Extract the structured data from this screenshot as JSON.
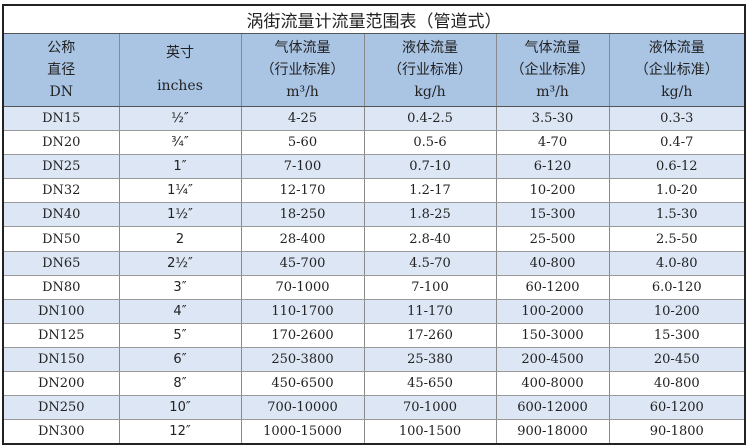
{
  "title": "涡街流量计流量范围表（管道式）",
  "headers": [
    {
      "l1": "公称",
      "l2": "直径",
      "l3": "DN"
    },
    {
      "l1": "英寸",
      "l2": "",
      "l3": "inches"
    },
    {
      "l1": "气体流量",
      "l2": "（行业标准）",
      "l3": "m³/h"
    },
    {
      "l1": "液体流量",
      "l2": "（行业标准）",
      "l3": "kg/h"
    },
    {
      "l1": "气体流量",
      "l2": "（企业标准）",
      "l3": "m³/h"
    },
    {
      "l1": "液体流量",
      "l2": "（企业标准）",
      "l3": "kg/h"
    }
  ],
  "rows": [
    [
      "DN15",
      "½″",
      "4-25",
      "0.4-2.5",
      "3.5-30",
      "0.3-3"
    ],
    [
      "DN20",
      "¾″",
      "5-60",
      "0.5-6",
      "4-70",
      "0.4-7"
    ],
    [
      "DN25",
      "1″",
      "7-100",
      "0.7-10",
      "6-120",
      "0.6-12"
    ],
    [
      "DN32",
      "1¼″",
      "12-170",
      "1.2-17",
      "10-200",
      "1.0-20"
    ],
    [
      "DN40",
      "1½″",
      "18-250",
      "1.8-25",
      "15-300",
      "1.5-30"
    ],
    [
      "DN50",
      "2",
      "28-400",
      "2.8-40",
      "25-500",
      "2.5-50"
    ],
    [
      "DN65",
      "2½″",
      "45-700",
      "4.5-70",
      "40-800",
      "4.0-80"
    ],
    [
      "DN80",
      "3″",
      "70-1000",
      "7-100",
      "60-1200",
      "6.0-120"
    ],
    [
      "DN100",
      "4″",
      "110-1700",
      "11-170",
      "100-2000",
      "10-200"
    ],
    [
      "DN125",
      "5″",
      "170-2600",
      "17-260",
      "150-3000",
      "15-300"
    ],
    [
      "DN150",
      "6″",
      "250-3800",
      "25-380",
      "200-4500",
      "20-450"
    ],
    [
      "DN200",
      "8″",
      "450-6500",
      "45-650",
      "400-8000",
      "40-800"
    ],
    [
      "DN250",
      "10″",
      "700-10000",
      "70-1000",
      "600-12000",
      "60-1200"
    ],
    [
      "DN300",
      "12″",
      "1000-15000",
      "100-1500",
      "900-18000",
      "90-1800"
    ]
  ],
  "colors": {
    "header": "#aac4e4",
    "row_alt": "#dce6f4"
  }
}
